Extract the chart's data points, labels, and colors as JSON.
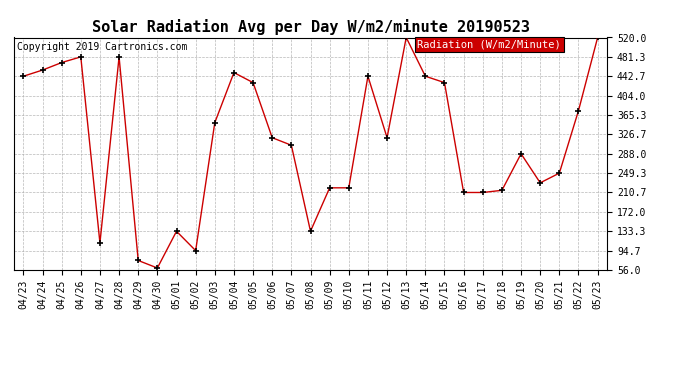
{
  "title": "Solar Radiation Avg per Day W/m2/minute 20190523",
  "copyright": "Copyright 2019 Cartronics.com",
  "legend_label": "Radiation (W/m2/Minute)",
  "dates": [
    "04/23",
    "04/24",
    "04/25",
    "04/26",
    "04/27",
    "04/28",
    "04/29",
    "04/30",
    "05/01",
    "05/02",
    "05/03",
    "05/04",
    "05/05",
    "05/06",
    "05/07",
    "05/08",
    "05/09",
    "05/10",
    "05/11",
    "05/12",
    "05/13",
    "05/14",
    "05/15",
    "05/16",
    "05/17",
    "05/18",
    "05/19",
    "05/20",
    "05/21",
    "05/22",
    "05/23"
  ],
  "values": [
    442.7,
    455.0,
    470.0,
    481.3,
    110.0,
    481.3,
    75.0,
    60.0,
    133.3,
    94.7,
    350.0,
    450.0,
    430.0,
    320.0,
    305.0,
    133.3,
    220.0,
    220.0,
    442.7,
    320.0,
    520.0,
    442.7,
    430.0,
    210.7,
    210.7,
    215.0,
    288.0,
    230.0,
    249.3,
    374.0,
    520.0
  ],
  "line_color": "#cc0000",
  "marker_color": "#000000",
  "bg_color": "#ffffff",
  "plot_bg_color": "#ffffff",
  "grid_color": "#b0b0b0",
  "legend_bg": "#cc0000",
  "legend_text_color": "#ffffff",
  "ylim_min": 56.0,
  "ylim_max": 520.0,
  "yticks": [
    56.0,
    94.7,
    133.3,
    172.0,
    210.7,
    249.3,
    288.0,
    326.7,
    365.3,
    404.0,
    442.7,
    481.3,
    520.0
  ],
  "title_fontsize": 11,
  "copyright_fontsize": 7,
  "tick_fontsize": 7,
  "legend_fontsize": 7.5,
  "figwidth": 6.9,
  "figheight": 3.75,
  "dpi": 100
}
